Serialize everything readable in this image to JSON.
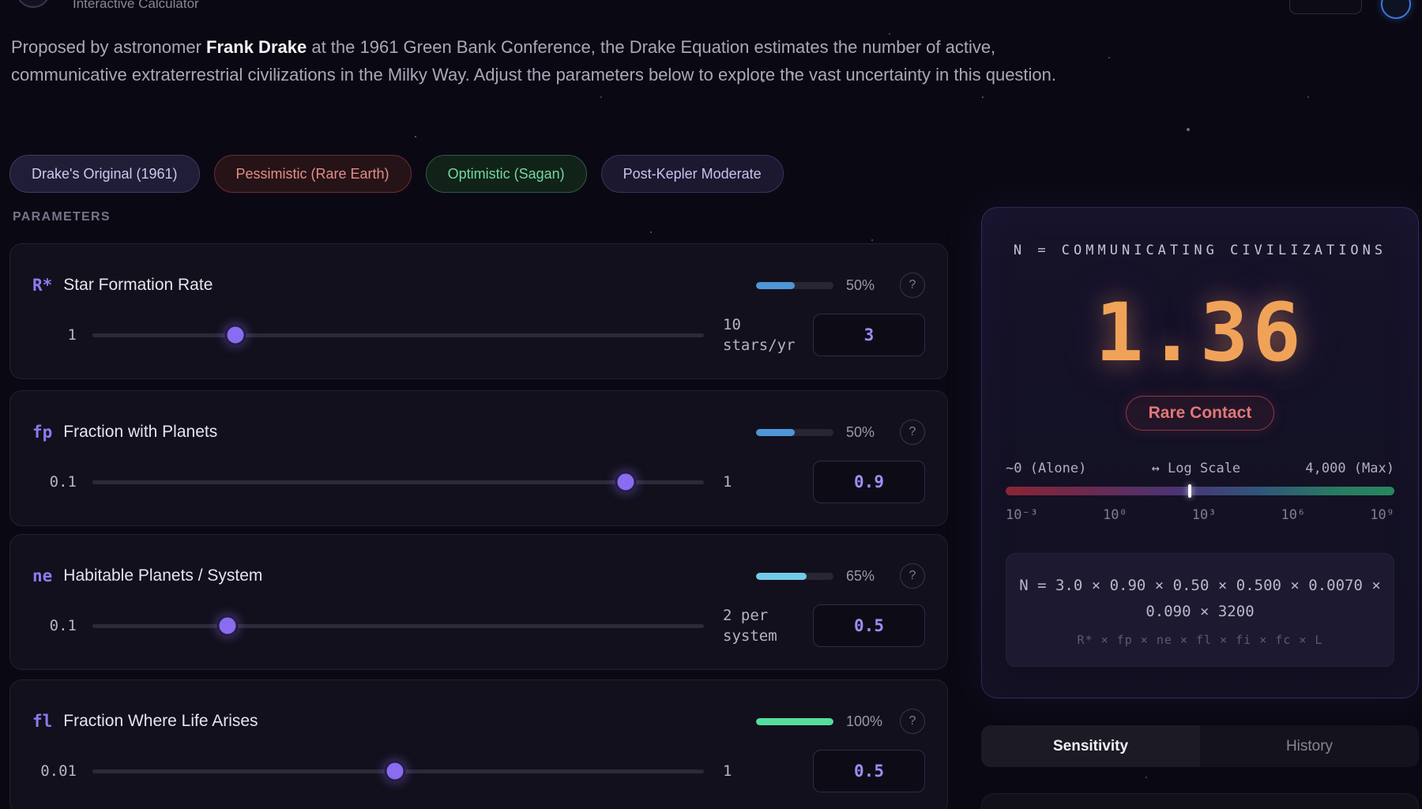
{
  "header": {
    "subtitle": "Interactive Calculator"
  },
  "intro": {
    "lead": "Proposed by astronomer ",
    "emphasis": "Frank Drake",
    "rest": " at the 1961 Green Bank Conference, the Drake Equation estimates the number of active, communicative extraterrestrial civilizations in the Milky Way. Adjust the parameters below to explore the vast uncertainty in this question."
  },
  "presets": [
    {
      "label": "Drake's Original (1961)"
    },
    {
      "label": "Pessimistic (Rare Earth)"
    },
    {
      "label": "Optimistic (Sagan)"
    },
    {
      "label": "Post-Kepler Moderate"
    }
  ],
  "parameters_heading": "PARAMETERS",
  "ui": {
    "help_label": "?"
  },
  "parameters": [
    {
      "symbol": "R*",
      "name": "Star Formation Rate",
      "min": "1",
      "max": "10\nstars/yr",
      "value": "3",
      "percent": "50%",
      "progress": 50,
      "bar_color": "#4f96d8",
      "slider_percent": 23.4
    },
    {
      "symbol": "fp",
      "name": "Fraction with Planets",
      "min": "0.1",
      "max": "1",
      "value": "0.9",
      "percent": "50%",
      "progress": 50,
      "bar_color": "#4f96d8",
      "slider_percent": 87.2
    },
    {
      "symbol": "ne",
      "name": "Habitable Planets / System",
      "min": "0.1",
      "max": "2 per\nsystem",
      "value": "0.5",
      "percent": "65%",
      "progress": 65,
      "bar_color": "#72cbe8",
      "slider_percent": 22.1
    },
    {
      "symbol": "fl",
      "name": "Fraction Where Life Arises",
      "min": "0.01",
      "max": "1",
      "value": "0.5",
      "percent": "100%",
      "progress": 100,
      "bar_color": "#55dd9e",
      "slider_percent": 49.5
    }
  ],
  "result": {
    "title": "N = COMMUNICATING CIVILIZATIONS",
    "value": "1.36",
    "badge": "Rare Contact",
    "scale_left": "~0 (Alone)",
    "scale_center": "↔ Log Scale",
    "scale_right": "4,000 (Max)",
    "marker_percent": 47.4,
    "ticks": [
      "10⁻³",
      "10⁰",
      "10³",
      "10⁶",
      "10⁹"
    ],
    "formula": "N = 3.0 × 0.90 × 0.50 × 0.500 × 0.0070 × 0.090 × 3200",
    "formula_symbols": "R* × fp × ne × fl × fi × fc × L",
    "accent_color": "#f0a358"
  },
  "tabs": [
    {
      "label": "Sensitivity",
      "active": true
    },
    {
      "label": "History",
      "active": false
    }
  ]
}
